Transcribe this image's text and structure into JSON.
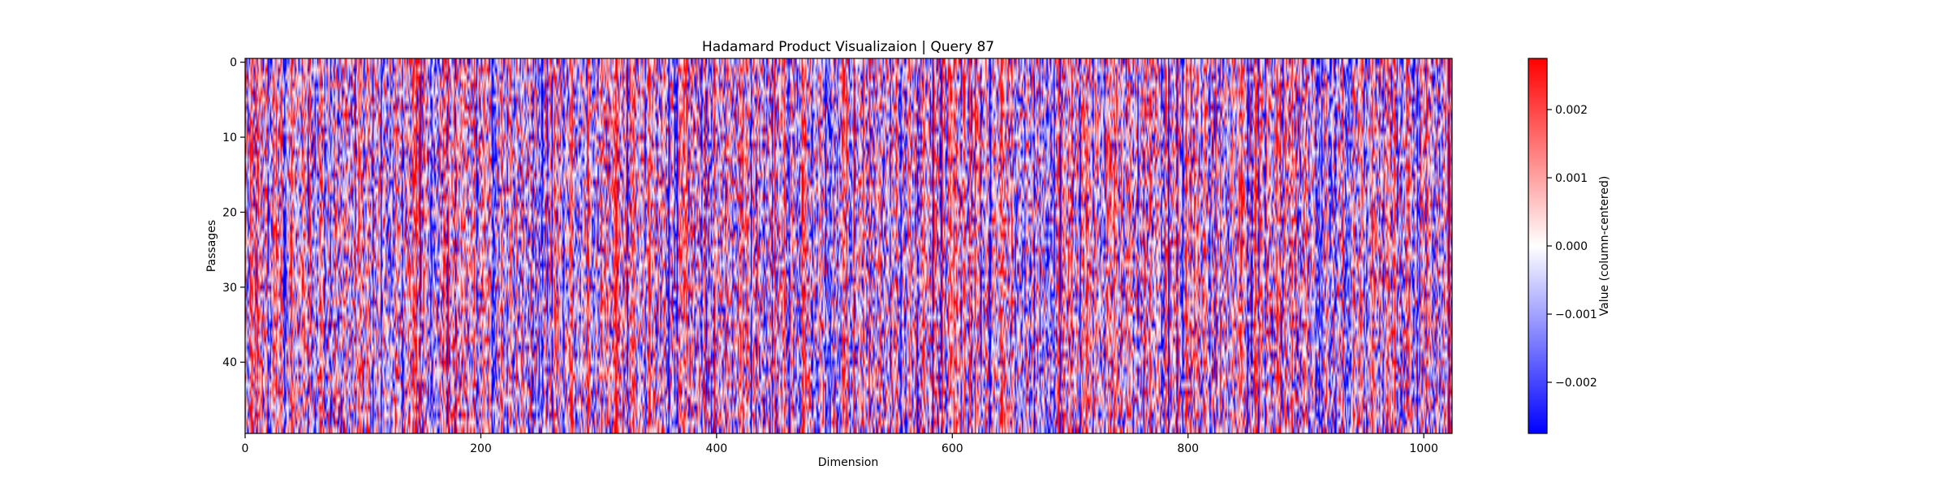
{
  "chart_data": {
    "type": "heatmap",
    "title": "Hadamard Product Visualizaion | Query 87",
    "xlabel": "Dimension",
    "ylabel": "Passages",
    "x_range": [
      0,
      1024
    ],
    "y_range": [
      0,
      50
    ],
    "x_ticks": [
      0,
      200,
      400,
      600,
      800,
      1000
    ],
    "x_tick_labels": [
      "0",
      "200",
      "400",
      "600",
      "800",
      "1000"
    ],
    "y_ticks": [
      0,
      10,
      20,
      30,
      40
    ],
    "y_tick_labels": [
      "0",
      "10",
      "20",
      "30",
      "40"
    ],
    "rows": 50,
    "columns": 1024,
    "colormap": "bwr",
    "colormap_colors": {
      "low": "#0000ff",
      "mid": "#ffffff",
      "high": "#ff0000"
    },
    "color_range": [
      -0.00275,
      0.00275
    ],
    "colorbar": {
      "label": "Value (column-centered)",
      "ticks": [
        0.002,
        0.001,
        0.0,
        -0.001,
        -0.002
      ],
      "tick_labels": [
        "0.002",
        "0.001",
        "0.000",
        "−0.001",
        "−0.002"
      ]
    }
  }
}
